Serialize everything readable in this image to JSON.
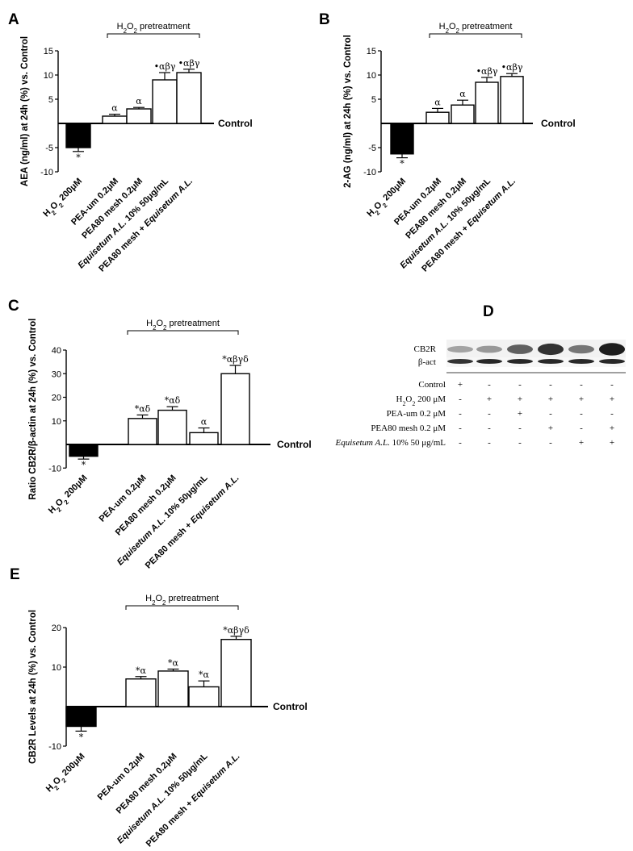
{
  "chart_data": [
    {
      "id": "A",
      "panel_label": "A",
      "type": "bar",
      "ylabel": "AEA (ng/ml) at 24h (%) vs. Control",
      "baseline_label": "Control",
      "bracket_label": "H2O2 pretreatment",
      "categories": [
        "H2O2 200μM",
        "PEA-um 0.2μM",
        "PEA80 mesh 0.2μM",
        "Equisetum A.L. 10% 50μg/mL",
        "PEA80 mesh + Equisetum A.L."
      ],
      "values": [
        -5,
        1.5,
        3,
        9,
        10.5
      ],
      "errors": [
        0.8,
        0.4,
        0.3,
        1.5,
        0.7
      ],
      "annotations": [
        "*",
        "α",
        "α",
        "•αβγ",
        "•αβγ"
      ],
      "bar_colors": [
        "#000000",
        "#ffffff",
        "#ffffff",
        "#ffffff",
        "#ffffff"
      ],
      "ylim": [
        -10,
        15
      ],
      "yticks": [
        -10,
        -5,
        5,
        10,
        15
      ]
    },
    {
      "id": "B",
      "panel_label": "B",
      "type": "bar",
      "ylabel": "2-AG (ng/ml) at 24h (%) vs. Control",
      "baseline_label": "Control",
      "bracket_label": "H2O2 pretreatment",
      "categories": [
        "H2O2 200μM",
        "PEA-um 0.2μM",
        "PEA80 mesh 0.2μM",
        "Equisetum A.L. 10% 50μg/mL",
        "PEA80 mesh + Equisetum A.L."
      ],
      "values": [
        -6.3,
        2.3,
        3.8,
        8.5,
        9.7
      ],
      "errors": [
        0.8,
        0.8,
        1.0,
        1.0,
        0.6
      ],
      "annotations": [
        "*",
        "α",
        "α",
        "•αβγ",
        "•αβγ"
      ],
      "bar_colors": [
        "#000000",
        "#ffffff",
        "#ffffff",
        "#ffffff",
        "#ffffff"
      ],
      "ylim": [
        -10,
        15
      ],
      "yticks": [
        -10,
        -5,
        5,
        10,
        15
      ]
    },
    {
      "id": "C",
      "panel_label": "C",
      "type": "bar",
      "ylabel": "Ratio CB2R/β-actin at 24h (%) vs. Control",
      "baseline_label": "Control",
      "bracket_label": "H2O2 pretreatment",
      "categories": [
        "H2O2 200μM",
        "PEA-um 0.2μM",
        "PEA80 mesh 0.2μM",
        "Equisetum A.L. 10% 50μg/mL",
        "PEA80 mesh + Equisetum A.L."
      ],
      "values": [
        -5,
        11,
        14.5,
        5,
        30
      ],
      "errors": [
        1.2,
        1.5,
        1.5,
        2.0,
        3.5
      ],
      "annotations": [
        "*",
        "*αδ",
        "*αδ",
        "α",
        "*αβγδ"
      ],
      "bar_colors": [
        "#000000",
        "#ffffff",
        "#ffffff",
        "#ffffff",
        "#ffffff"
      ],
      "ylim": [
        -10,
        40
      ],
      "yticks": [
        -10,
        10,
        20,
        30,
        40
      ]
    },
    {
      "id": "E",
      "panel_label": "E",
      "type": "bar",
      "ylabel": "CB2R Levels at 24h (%) vs. Control",
      "baseline_label": "Control",
      "bracket_label": "H2O2 pretreatment",
      "categories": [
        "H2O2 200μM",
        "PEA-um 0.2μM",
        "PEA80 mesh 0.2μM",
        "Equisetum A.L. 10% 50μg/mL",
        "PEA80 mesh + Equisetum A.L."
      ],
      "values": [
        -5,
        7,
        9,
        5,
        17
      ],
      "errors": [
        1.2,
        0.6,
        0.5,
        1.5,
        0.8
      ],
      "annotations": [
        "*",
        "*α",
        "*α",
        "*α",
        "*αβγδ"
      ],
      "bar_colors": [
        "#000000",
        "#ffffff",
        "#ffffff",
        "#ffffff",
        "#ffffff"
      ],
      "ylim": [
        -10,
        20
      ],
      "yticks": [
        -10,
        10,
        20
      ]
    }
  ],
  "western_blot": {
    "panel_label": "D",
    "band_labels": [
      "CB2R",
      "β-act"
    ],
    "cb2r_intensity": [
      0.35,
      0.4,
      0.65,
      0.85,
      0.55,
      0.95
    ],
    "bact_intensity": [
      0.85,
      0.9,
      0.9,
      0.9,
      0.9,
      0.9
    ],
    "rows": [
      {
        "label": "Control",
        "signs": [
          "+",
          "-",
          "-",
          "-",
          "-",
          "-"
        ]
      },
      {
        "label": "H2O2 200 μM",
        "signs": [
          "-",
          "+",
          "+",
          "+",
          "+",
          "+"
        ]
      },
      {
        "label": "PEA-um 0.2 μM",
        "signs": [
          "-",
          "-",
          "+",
          "-",
          "-",
          "-"
        ]
      },
      {
        "label": "PEA80 mesh 0.2 μM",
        "signs": [
          "-",
          "-",
          "-",
          "+",
          "-",
          "+"
        ]
      },
      {
        "label": "Equisetum A.L. 10% 50 μg/mL",
        "signs": [
          "-",
          "-",
          "-",
          "-",
          "+",
          "+"
        ]
      }
    ]
  }
}
